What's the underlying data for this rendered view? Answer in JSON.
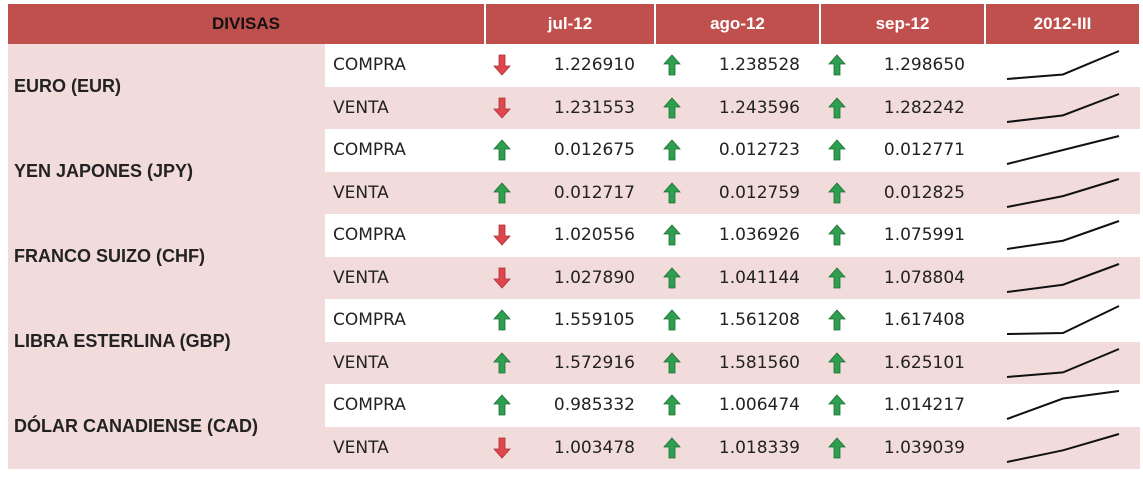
{
  "header": {
    "columns": [
      "DIVISAS",
      "jul-12",
      "ago-12",
      "sep-12",
      "2012-III"
    ]
  },
  "currencies": [
    {
      "name": "EURO (EUR)",
      "rows": [
        {
          "type": "COMPRA",
          "values": [
            "1.226910",
            "1.238528",
            "1.298650"
          ],
          "trends": [
            "down",
            "up",
            "up"
          ]
        },
        {
          "type": "VENTA",
          "values": [
            "1.231553",
            "1.243596",
            "1.282242"
          ],
          "trends": [
            "down",
            "up",
            "up"
          ]
        }
      ]
    },
    {
      "name": "YEN JAPONES (JPY)",
      "rows": [
        {
          "type": "COMPRA",
          "values": [
            "0.012675",
            "0.012723",
            "0.012771"
          ],
          "trends": [
            "up",
            "up",
            "up"
          ]
        },
        {
          "type": "VENTA",
          "values": [
            "0.012717",
            "0.012759",
            "0.012825"
          ],
          "trends": [
            "up",
            "up",
            "up"
          ]
        }
      ]
    },
    {
      "name": "FRANCO SUIZO (CHF)",
      "rows": [
        {
          "type": "COMPRA",
          "values": [
            "1.020556",
            "1.036926",
            "1.075991"
          ],
          "trends": [
            "down",
            "up",
            "up"
          ]
        },
        {
          "type": "VENTA",
          "values": [
            "1.027890",
            "1.041144",
            "1.078804"
          ],
          "trends": [
            "down",
            "up",
            "up"
          ]
        }
      ]
    },
    {
      "name": "LIBRA ESTERLINA (GBP)",
      "rows": [
        {
          "type": "COMPRA",
          "values": [
            "1.559105",
            "1.561208",
            "1.617408"
          ],
          "trends": [
            "up",
            "up",
            "up"
          ]
        },
        {
          "type": "VENTA",
          "values": [
            "1.572916",
            "1.581560",
            "1.625101"
          ],
          "trends": [
            "up",
            "up",
            "up"
          ]
        }
      ]
    },
    {
      "name": "DÓLAR CANADIENSE (CAD)",
      "rows": [
        {
          "type": "COMPRA",
          "values": [
            "0.985332",
            "1.006474",
            "1.014217"
          ],
          "trends": [
            "up",
            "up",
            "up"
          ]
        },
        {
          "type": "VENTA",
          "values": [
            "1.003478",
            "1.018339",
            "1.039039"
          ],
          "trends": [
            "down",
            "up",
            "up"
          ]
        }
      ]
    }
  ]
}
